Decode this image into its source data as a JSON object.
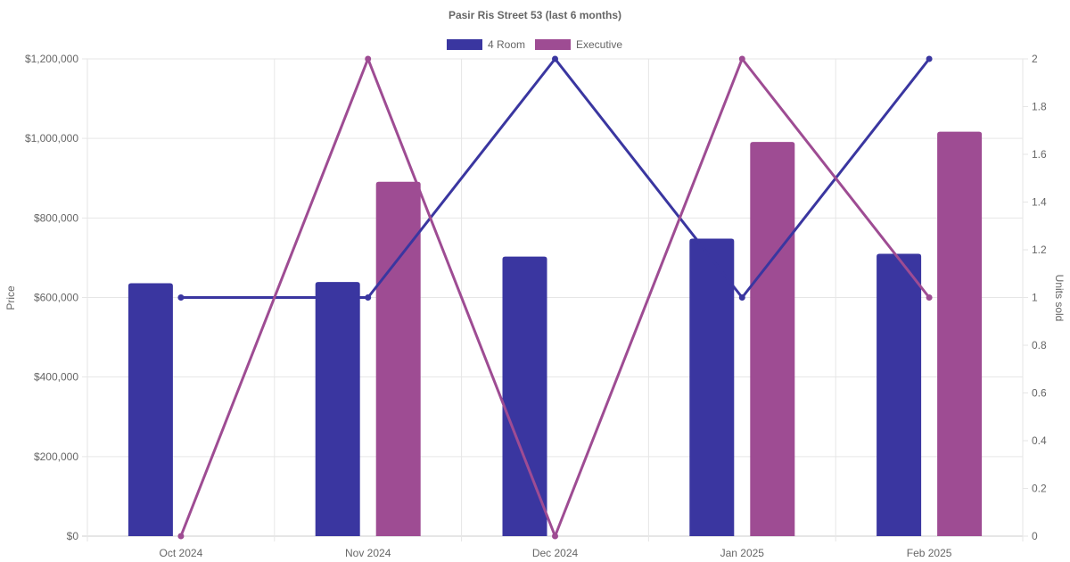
{
  "chart_data": {
    "type": "bar",
    "title": "Pasir Ris Street 53 (last 6 months)",
    "categories": [
      "Oct 2024",
      "Nov 2024",
      "Dec 2024",
      "Jan 2025",
      "Feb 2025"
    ],
    "y_left": {
      "label": "Price",
      "ylim": [
        0,
        1200000
      ],
      "ticks": [
        "$0",
        "$200,000",
        "$400,000",
        "$600,000",
        "$800,000",
        "$1,000,000",
        "$1,200,000"
      ]
    },
    "y_right": {
      "label": "Units sold",
      "ylim": [
        0,
        2
      ],
      "ticks": [
        "0",
        "0.2",
        "0.4",
        "0.6",
        "0.8",
        "1",
        "1.2",
        "1.4",
        "1.6",
        "1.8",
        "2"
      ]
    },
    "legend_position": "top-center",
    "grid": true,
    "series": [
      {
        "name": "4 Room",
        "color": "#3a36a0",
        "price": [
          636000,
          639000,
          703000,
          748000,
          710000
        ],
        "units": [
          1,
          1,
          2,
          1,
          2
        ]
      },
      {
        "name": "Executive",
        "color": "#9e4c93",
        "price": [
          null,
          891000,
          null,
          991000,
          1017000
        ],
        "units": [
          0,
          2,
          0,
          2,
          1
        ]
      }
    ]
  }
}
